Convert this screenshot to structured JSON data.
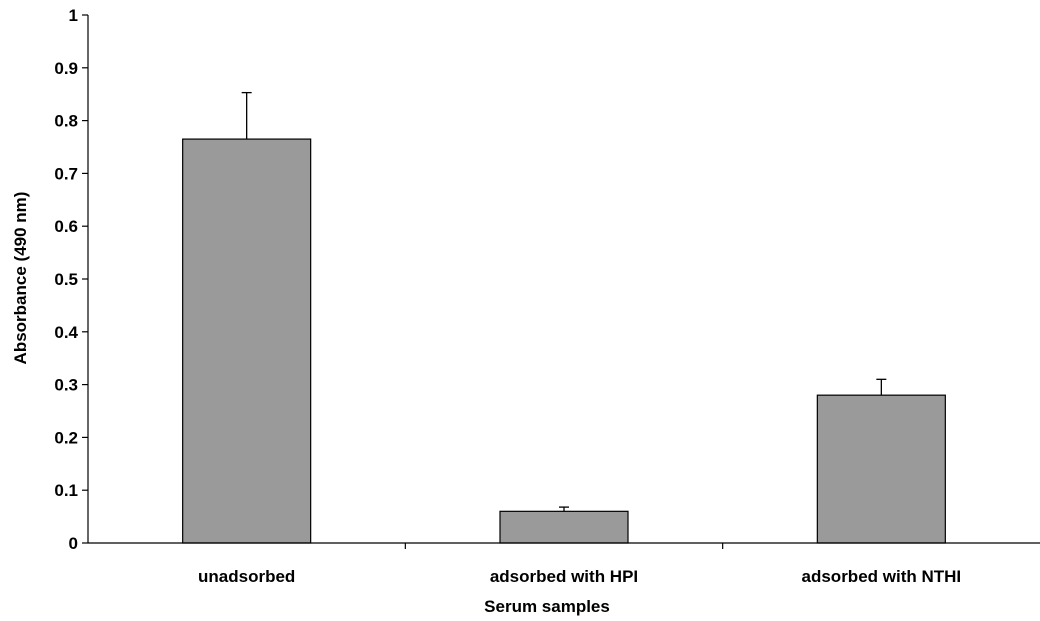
{
  "chart_data": {
    "type": "bar",
    "categories": [
      "unadsorbed",
      "adsorbed with HPI",
      "adsorbed with NTHI"
    ],
    "values": [
      0.765,
      0.06,
      0.28
    ],
    "errors": [
      0.088,
      0.008,
      0.03
    ],
    "title": "",
    "xlabel": "Serum samples",
    "ylabel": "Absorbance (490 nm)",
    "ylim": [
      0,
      1
    ],
    "yticks": [
      "0",
      "0.1",
      "0.2",
      "0.3",
      "0.4",
      "0.5",
      "0.6",
      "0.7",
      "0.8",
      "0.9",
      "1"
    ],
    "grid": false,
    "legend": "none",
    "bar_color": "#9a9a9a",
    "bar_edge_color": "#000000"
  }
}
